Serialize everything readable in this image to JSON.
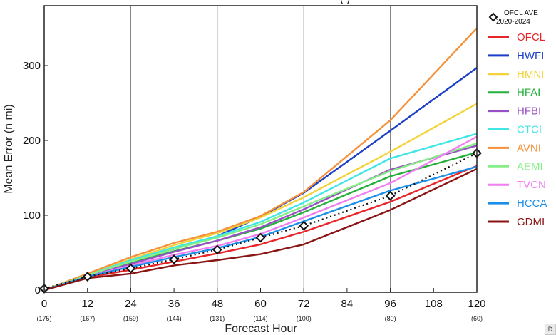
{
  "chart_data": {
    "type": "line",
    "title": "",
    "xlabel": "Forecast Hour",
    "ylabel": "Mean Error (n mi)",
    "xlim": [
      0,
      120
    ],
    "ylim": [
      0,
      380
    ],
    "x_ticks": [
      0,
      12,
      24,
      36,
      48,
      60,
      72,
      84,
      96,
      108,
      120
    ],
    "y_ticks": [
      0,
      100,
      200,
      300
    ],
    "vertical_gridlines": [
      24,
      48,
      72,
      96
    ],
    "case_counts": [
      {
        "x": 0,
        "label": "(175)"
      },
      {
        "x": 12,
        "label": "(167)"
      },
      {
        "x": 24,
        "label": "(159)"
      },
      {
        "x": 36,
        "label": "(144)"
      },
      {
        "x": 48,
        "label": "(131)"
      },
      {
        "x": 60,
        "label": "(114)"
      },
      {
        "x": 72,
        "label": "(100)"
      },
      {
        "x": 96,
        "label": "(80)"
      },
      {
        "x": 120,
        "label": "(60)"
      }
    ],
    "x": [
      0,
      12,
      24,
      36,
      48,
      60,
      72,
      96,
      120
    ],
    "average": {
      "name_line1": "OFCL AVE",
      "name_line2": "2020-2024",
      "values": [
        2,
        18,
        29,
        41,
        54,
        70,
        86,
        126,
        183
      ]
    },
    "series": [
      {
        "name": "OFCL",
        "color": "#e8262a",
        "values": [
          0,
          17,
          27,
          38,
          49,
          61,
          78,
          118,
          166
        ]
      },
      {
        "name": "HWFI",
        "color": "#1c3fc8",
        "values": [
          0,
          20,
          38,
          55,
          72,
          98,
          130,
          213,
          297
        ]
      },
      {
        "name": "HMNI",
        "color": "#f2d43a",
        "values": [
          0,
          21,
          41,
          60,
          76,
          97,
          124,
          185,
          249
        ]
      },
      {
        "name": "HFAI",
        "color": "#22b03a",
        "values": [
          0,
          19,
          36,
          52,
          66,
          82,
          104,
          152,
          184
        ]
      },
      {
        "name": "HFBI",
        "color": "#9a4fc4",
        "values": [
          0,
          19,
          35,
          51,
          66,
          84,
          108,
          161,
          193
        ]
      },
      {
        "name": "CTCI",
        "color": "#40e6e6",
        "values": [
          0,
          20,
          40,
          57,
          72,
          91,
          117,
          176,
          209
        ]
      },
      {
        "name": "AVNI",
        "color": "#f5913a",
        "values": [
          0,
          22,
          44,
          63,
          78,
          99,
          131,
          227,
          350
        ]
      },
      {
        "name": "AEMI",
        "color": "#86ee86",
        "values": [
          0,
          20,
          38,
          55,
          70,
          88,
          112,
          159,
          196
        ]
      },
      {
        "name": "TVCN",
        "color": "#f07ef0",
        "values": [
          0,
          18,
          33,
          47,
          59,
          75,
          97,
          143,
          205
        ]
      },
      {
        "name": "HCCA",
        "color": "#1a8ee8",
        "values": [
          0,
          18,
          31,
          44,
          56,
          71,
          92,
          133,
          165
        ]
      },
      {
        "name": "GDMI",
        "color": "#8b1414",
        "values": [
          0,
          16,
          22,
          33,
          40,
          48,
          61,
          107,
          162
        ]
      }
    ],
    "legend_position": "right"
  },
  "title_fragment": "(                )",
  "corner_badge": "D"
}
